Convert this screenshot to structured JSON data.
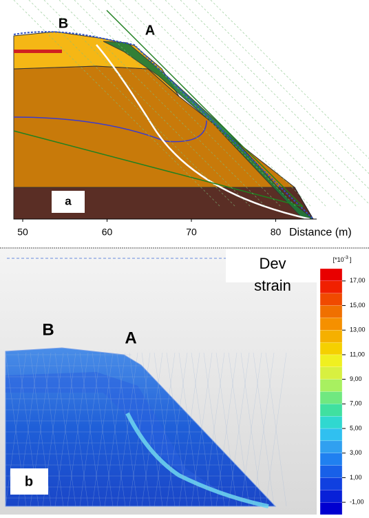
{
  "panel_a": {
    "label": "a",
    "point_a": "A",
    "point_b": "B",
    "x_axis": {
      "title": "Distance (m)",
      "ticks": [
        50,
        60,
        70,
        80
      ]
    }
  },
  "panel_b": {
    "label": "b",
    "point_a": "A",
    "point_b": "B",
    "legend_title": [
      "Dev",
      "strain"
    ],
    "colorbar": {
      "unit": "[*10",
      "unit_exp": "-3",
      "unit_close": "]",
      "ticks": [
        "17,00",
        "15,00",
        "13,00",
        "11,00",
        "9,00",
        "7,00",
        "5,00",
        "3,00",
        "1,00",
        "-1,00"
      ]
    }
  }
}
